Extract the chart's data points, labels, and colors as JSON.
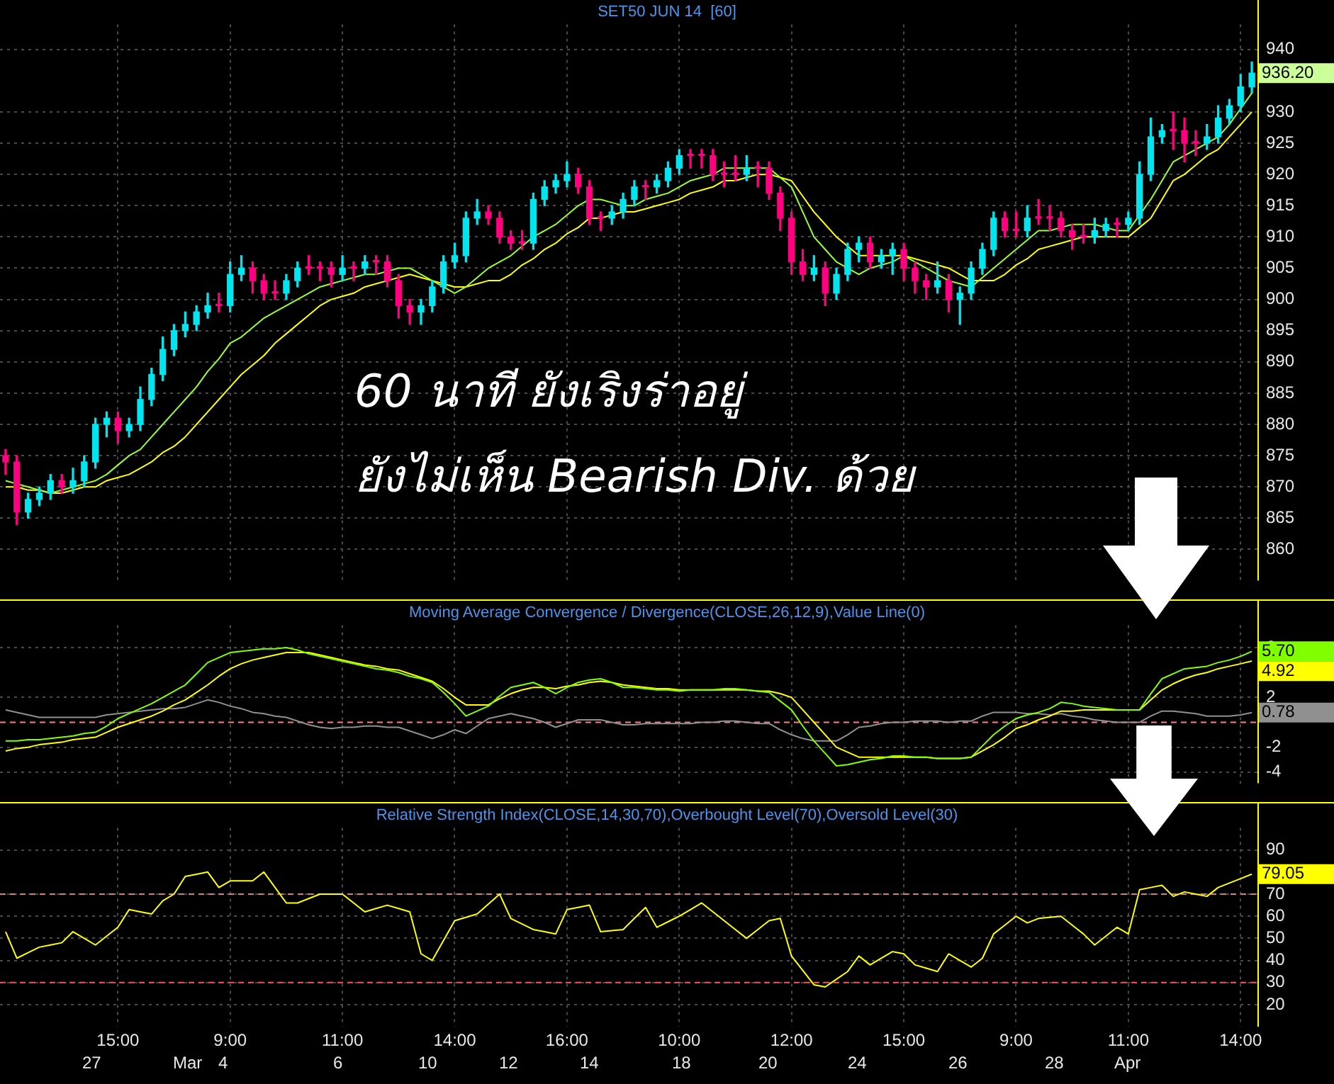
{
  "chart_data": [
    {
      "type": "candlestick",
      "title": "SET50 JUN 14  [60]",
      "categories": [
        null,
        null,
        null,
        null,
        null,
        null,
        null,
        null,
        null,
        null,
        null,
        null,
        null,
        null,
        null,
        null,
        null,
        null,
        null,
        null,
        null,
        null,
        null,
        null,
        null,
        null,
        null,
        null,
        null,
        null,
        null,
        null,
        null,
        null,
        null,
        null,
        null,
        null,
        null,
        null,
        null,
        null,
        null,
        null,
        null,
        null,
        null,
        null,
        null,
        null,
        null,
        null,
        null,
        null,
        null,
        null,
        null,
        null,
        null,
        null,
        null,
        null,
        null,
        null,
        null,
        null,
        null,
        null,
        null,
        null,
        null,
        null,
        null,
        null,
        null,
        null,
        null,
        null,
        null,
        null,
        null,
        null,
        null,
        null,
        null,
        null,
        null,
        null,
        null,
        null,
        null,
        null,
        null,
        null,
        null,
        null,
        null,
        null,
        null,
        null,
        null,
        null,
        null,
        null,
        null,
        null,
        null,
        null,
        null,
        null,
        null,
        null
      ],
      "ohlc": [
        [
          875,
          876,
          872,
          874
        ],
        [
          874,
          875,
          864,
          866
        ],
        [
          866,
          869,
          865,
          868
        ],
        [
          868,
          870,
          867,
          869
        ],
        [
          869,
          872,
          868,
          871
        ],
        [
          871,
          872,
          869,
          870
        ],
        [
          870,
          873,
          869,
          871
        ],
        [
          871,
          875,
          870,
          874
        ],
        [
          874,
          881,
          873,
          880
        ],
        [
          880,
          882,
          878,
          881
        ],
        [
          881,
          882,
          877,
          879
        ],
        [
          879,
          881,
          878,
          880
        ],
        [
          880,
          886,
          879,
          884
        ],
        [
          884,
          889,
          883,
          888
        ],
        [
          888,
          894,
          887,
          892
        ],
        [
          892,
          896,
          891,
          895
        ],
        [
          895,
          898,
          894,
          896
        ],
        [
          896,
          899,
          895,
          898
        ],
        [
          898,
          901,
          897,
          899
        ],
        [
          899,
          901,
          898,
          899
        ],
        [
          899,
          906,
          898,
          904
        ],
        [
          904,
          907,
          903,
          905
        ],
        [
          905,
          906,
          901,
          903
        ],
        [
          903,
          904,
          900,
          901
        ],
        [
          901,
          903,
          900,
          901
        ],
        [
          901,
          904,
          900,
          903
        ],
        [
          903,
          906,
          902,
          905
        ],
        [
          905,
          907,
          904,
          905
        ],
        [
          905,
          906,
          903,
          905
        ],
        [
          905,
          906,
          902,
          904
        ],
        [
          904,
          907,
          903,
          905
        ],
        [
          905,
          906,
          903,
          905
        ],
        [
          905,
          907,
          904,
          906
        ],
        [
          906,
          907,
          904,
          906
        ],
        [
          906,
          907,
          902,
          903
        ],
        [
          903,
          904,
          897,
          899
        ],
        [
          899,
          900,
          896,
          898
        ],
        [
          898,
          900,
          896,
          899
        ],
        [
          899,
          903,
          898,
          902
        ],
        [
          902,
          907,
          901,
          906
        ],
        [
          906,
          909,
          905,
          907
        ],
        [
          907,
          914,
          906,
          913
        ],
        [
          913,
          916,
          912,
          914
        ],
        [
          914,
          915,
          912,
          913
        ],
        [
          913,
          914,
          909,
          910
        ],
        [
          910,
          911,
          908,
          909
        ],
        [
          909,
          911,
          908,
          909
        ],
        [
          909,
          917,
          908,
          916
        ],
        [
          916,
          919,
          915,
          918
        ],
        [
          918,
          920,
          917,
          919
        ],
        [
          919,
          922,
          918,
          920
        ],
        [
          920,
          921,
          917,
          918
        ],
        [
          918,
          919,
          912,
          913
        ],
        [
          913,
          914,
          911,
          913
        ],
        [
          913,
          915,
          912,
          914
        ],
        [
          914,
          917,
          913,
          916
        ],
        [
          916,
          919,
          915,
          918
        ],
        [
          918,
          919,
          916,
          918
        ],
        [
          918,
          920,
          917,
          919
        ],
        [
          919,
          922,
          918,
          921
        ],
        [
          921,
          924,
          920,
          923
        ],
        [
          923,
          924,
          921,
          923
        ],
        [
          923,
          924,
          921,
          923
        ],
        [
          923,
          924,
          919,
          920
        ],
        [
          920,
          922,
          918,
          920
        ],
        [
          920,
          923,
          919,
          920
        ],
        [
          920,
          923,
          919,
          921
        ],
        [
          921,
          922,
          918,
          921
        ],
        [
          921,
          922,
          916,
          917
        ],
        [
          917,
          918,
          911,
          913
        ],
        [
          913,
          914,
          904,
          906
        ],
        [
          906,
          908,
          903,
          904
        ],
        [
          904,
          907,
          903,
          905
        ],
        [
          905,
          906,
          899,
          901
        ],
        [
          901,
          905,
          900,
          904
        ],
        [
          904,
          909,
          903,
          908
        ],
        [
          908,
          910,
          906,
          909
        ],
        [
          909,
          910,
          905,
          906
        ],
        [
          906,
          908,
          905,
          907
        ],
        [
          907,
          909,
          904,
          908
        ],
        [
          908,
          909,
          903,
          905
        ],
        [
          905,
          906,
          901,
          903
        ],
        [
          903,
          904,
          900,
          902
        ],
        [
          902,
          906,
          901,
          903
        ],
        [
          903,
          904,
          898,
          900
        ],
        [
          900,
          902,
          896,
          901
        ],
        [
          901,
          906,
          900,
          905
        ],
        [
          905,
          909,
          904,
          908
        ],
        [
          908,
          914,
          907,
          913
        ],
        [
          913,
          914,
          910,
          911
        ],
        [
          911,
          914,
          910,
          911
        ],
        [
          911,
          915,
          910,
          913
        ],
        [
          913,
          916,
          912,
          913
        ],
        [
          913,
          915,
          911,
          913
        ],
        [
          913,
          914,
          910,
          911
        ],
        [
          911,
          912,
          908,
          910
        ],
        [
          910,
          912,
          909,
          910
        ],
        [
          910,
          913,
          909,
          911
        ],
        [
          911,
          913,
          910,
          912
        ],
        [
          912,
          913,
          910,
          912
        ],
        [
          912,
          914,
          911,
          913
        ],
        [
          913,
          922,
          912,
          920
        ],
        [
          920,
          929,
          919,
          926
        ],
        [
          926,
          928,
          925,
          927
        ],
        [
          927,
          930,
          924,
          927
        ],
        [
          927,
          929,
          922,
          925
        ],
        [
          925,
          927,
          923,
          925
        ],
        [
          925,
          928,
          924,
          926
        ],
        [
          926,
          931,
          925,
          929
        ],
        [
          929,
          932,
          928,
          931
        ],
        [
          931,
          936,
          930,
          934
        ],
        [
          934,
          938,
          933,
          936.2
        ]
      ],
      "colors": [
        "#ff0080",
        "#ff0080",
        "#00e5ee",
        "#00e5ee",
        "#00e5ee",
        "#ff0080",
        "#00e5ee",
        "#00e5ee",
        "#00e5ee",
        "#00e5ee",
        "#ff0080",
        "#00e5ee",
        "#00e5ee",
        "#00e5ee",
        "#00e5ee",
        "#00e5ee",
        "#00e5ee",
        "#00e5ee",
        "#00e5ee",
        "#ff0080",
        "#00e5ee",
        "#00e5ee",
        "#ff0080",
        "#ff0080",
        "#ff0080",
        "#00e5ee",
        "#00e5ee",
        "#ff0080",
        "#ff0080",
        "#ff0080",
        "#00e5ee",
        "#ff0080",
        "#00e5ee",
        "#ff0080",
        "#ff0080",
        "#ff0080",
        "#ff0080",
        "#00e5ee",
        "#00e5ee",
        "#00e5ee",
        "#00e5ee",
        "#00e5ee",
        "#00e5ee",
        "#ff0080",
        "#ff0080",
        "#ff0080",
        "#ff0080",
        "#00e5ee",
        "#00e5ee",
        "#00e5ee",
        "#00e5ee",
        "#ff0080",
        "#ff0080",
        "#ff0080",
        "#00e5ee",
        "#00e5ee",
        "#00e5ee",
        "#ff0080",
        "#00e5ee",
        "#00e5ee",
        "#00e5ee",
        "#ff0080",
        "#ff0080",
        "#ff0080",
        "#ff0080",
        "#ff0080",
        "#00e5ee",
        "#ff0080",
        "#ff0080",
        "#ff0080",
        "#ff0080",
        "#ff0080",
        "#00e5ee",
        "#ff0080",
        "#00e5ee",
        "#00e5ee",
        "#00e5ee",
        "#ff0080",
        "#00e5ee",
        "#00e5ee",
        "#ff0080",
        "#ff0080",
        "#ff0080",
        "#00e5ee",
        "#ff0080",
        "#00e5ee",
        "#00e5ee",
        "#00e5ee",
        "#00e5ee",
        "#ff0080",
        "#ff0080",
        "#00e5ee",
        "#ff0080",
        "#ff0080",
        "#ff0080",
        "#ff0080",
        "#ff0080",
        "#00e5ee",
        "#00e5ee",
        "#ff0080",
        "#00e5ee",
        "#00e5ee",
        "#00e5ee",
        "#00e5ee",
        "#ff0080",
        "#ff0080",
        "#ff0080",
        "#00e5ee",
        "#00e5ee",
        "#00e5ee",
        "#00e5ee",
        "#00e5ee"
      ],
      "series": [
        {
          "type": "line",
          "color": "#99ff33",
          "values": [
            871,
            870.5,
            870,
            869.5,
            869,
            869.5,
            870,
            870.5,
            871,
            872,
            873.5,
            875,
            876,
            878,
            880,
            882,
            884,
            886,
            888.5,
            890.5,
            893,
            894,
            895.5,
            897,
            898,
            899,
            900,
            901,
            902,
            902.5,
            903,
            903.5,
            904,
            904,
            904.5,
            905,
            905,
            904,
            903,
            902,
            901,
            902,
            903.5,
            905,
            906,
            907,
            908.5,
            910,
            911,
            912,
            913.5,
            915,
            916,
            916,
            915.5,
            915,
            915,
            916,
            916.5,
            917,
            918,
            919,
            919.5,
            920,
            921,
            921,
            921,
            921,
            921,
            919.5,
            918,
            914,
            910,
            908,
            906,
            905,
            904,
            905,
            905.5,
            906,
            907,
            906,
            905,
            904,
            903,
            902.5,
            902,
            903.5,
            905,
            906.5,
            908,
            909.5,
            911,
            911,
            911.5,
            912,
            912,
            912,
            911.5,
            911,
            911,
            913.5,
            916,
            919,
            922,
            923,
            924,
            925,
            926,
            928,
            930.5,
            933
          ]
        },
        {
          "type": "line",
          "color": "#ffff00",
          "values": [
            870,
            870,
            869.5,
            869.5,
            869,
            869,
            869.5,
            870,
            870,
            871,
            871.5,
            872,
            873,
            874,
            875.5,
            876.5,
            878,
            880,
            882,
            884,
            886,
            888,
            889.5,
            891,
            893,
            894.5,
            896,
            897.5,
            899,
            900,
            900.5,
            901,
            902,
            902.5,
            903,
            903.5,
            904,
            903.5,
            903,
            902.5,
            902,
            902,
            902.5,
            903,
            903,
            904,
            905.5,
            906.5,
            908,
            909,
            910.5,
            911.5,
            913,
            913,
            913.5,
            914,
            914,
            914.5,
            915,
            915.5,
            916,
            917,
            917.5,
            918,
            919,
            919,
            919.5,
            920,
            920,
            919.5,
            919,
            916.5,
            914,
            912,
            910,
            908.5,
            907,
            907,
            907,
            907,
            907,
            906.5,
            906,
            905.5,
            905,
            904,
            903,
            903,
            903,
            904,
            905.5,
            906.5,
            908,
            908.5,
            909,
            909.5,
            910,
            910,
            910,
            910,
            910,
            911.5,
            913,
            916,
            919,
            920,
            921.5,
            923,
            924,
            926,
            928,
            930
          ]
        }
      ],
      "ylim": [
        855,
        944
      ],
      "yticks": [
        860,
        865,
        870,
        875,
        880,
        885,
        890,
        895,
        900,
        905,
        910,
        915,
        920,
        925,
        930,
        940
      ],
      "grid": true,
      "tick_labels": "y",
      "annotations": [
        "60 นาที ยังเริงร่าอยู่",
        "ยังไม่เห็น Bearish Div. ด้วย",
        "936.20"
      ]
    },
    {
      "type": "line",
      "title": "Moving Average Convergence / Divergence(CLOSE,26,12,9),Value Line(0)",
      "categories": [
        null,
        null,
        null,
        null,
        null,
        null,
        null,
        null,
        null,
        null,
        null,
        null,
        null,
        null,
        null,
        null,
        null,
        null,
        null,
        null,
        null,
        null,
        null,
        null,
        null,
        null,
        null,
        null,
        null,
        null,
        null,
        null,
        null,
        null,
        null,
        null,
        null,
        null,
        null,
        null,
        null,
        null,
        null,
        null,
        null,
        null,
        null,
        null,
        null,
        null,
        null,
        null,
        null,
        null,
        null,
        null,
        null,
        null,
        null,
        null,
        null,
        null,
        null,
        null,
        null,
        null,
        null,
        null,
        null,
        null,
        null,
        null,
        null,
        null,
        null,
        null,
        null,
        null,
        null,
        null,
        null,
        null,
        null,
        null,
        null,
        null,
        null,
        null,
        null,
        null,
        null,
        null,
        null,
        null,
        null,
        null,
        null,
        null,
        null,
        null,
        null,
        null,
        null,
        null,
        null,
        null,
        null,
        null,
        null,
        null,
        null,
        null
      ],
      "series": [
        {
          "color": "#80ff00",
          "values": [
            -1.5,
            -1.5,
            -1.4,
            -1.4,
            -1.3,
            -1.2,
            -1.1,
            -0.9,
            -0.8,
            -0.3,
            0.3,
            0.7,
            1.1,
            1.5,
            2.0,
            2.5,
            3.0,
            3.9,
            4.8,
            5.2,
            5.6,
            5.7,
            5.8,
            5.9,
            5.9,
            6.0,
            5.8,
            5.5,
            5.3,
            5.1,
            4.9,
            4.7,
            4.5,
            4.3,
            4.2,
            4.0,
            3.7,
            3.5,
            3.2,
            2.4,
            1.5,
            0.5,
            0.9,
            1.3,
            2.1,
            2.8,
            3.0,
            3.2,
            2.8,
            2.3,
            2.8,
            3.2,
            3.4,
            3.5,
            3.2,
            2.8,
            2.8,
            2.7,
            2.6,
            2.6,
            2.5,
            2.6,
            2.6,
            2.6,
            2.7,
            2.7,
            2.6,
            2.5,
            2.4,
            1.7,
            1.0,
            -0.3,
            -1.5,
            -2.5,
            -3.5,
            -3.4,
            -3.2,
            -3.0,
            -2.9,
            -2.7,
            -2.7,
            -2.8,
            -2.8,
            -2.9,
            -2.9,
            -2.9,
            -2.8,
            -1.9,
            -1.0,
            -0.3,
            0.3,
            0.6,
            0.8,
            1.1,
            1.6,
            1.5,
            1.3,
            1.2,
            1.1,
            1.0,
            1.0,
            1.0,
            2.3,
            3.5,
            3.9,
            4.3,
            4.4,
            4.5,
            4.8,
            5.0,
            5.3,
            5.7
          ],
          "value_labels": [
            null,
            null,
            null,
            null,
            null,
            null,
            null,
            null,
            null,
            null,
            null,
            null,
            null,
            null,
            null,
            null,
            null,
            null,
            null,
            null,
            null,
            null,
            null,
            null,
            null,
            null,
            null,
            null,
            null,
            null,
            null,
            null,
            null,
            null,
            null,
            null,
            null,
            null,
            null,
            null,
            null,
            null,
            null,
            null,
            null,
            null,
            null,
            null,
            null,
            null,
            null,
            null,
            null,
            null,
            null,
            null,
            null,
            null,
            null,
            null,
            null,
            null,
            null,
            null,
            null,
            null,
            null,
            null,
            null,
            null,
            null,
            null,
            null,
            null,
            null,
            null,
            null,
            null,
            null,
            null,
            null,
            null,
            null,
            null,
            null,
            null,
            null,
            null,
            null,
            null,
            null,
            null,
            null,
            null,
            null,
            null,
            null,
            null,
            null,
            null,
            null,
            null,
            null,
            null,
            null,
            null,
            null,
            null,
            null,
            null,
            null,
            "5.70"
          ]
        },
        {
          "color": "#ffff00",
          "values": [
            -2.3,
            -2.1,
            -2.0,
            -1.8,
            -1.7,
            -1.6,
            -1.4,
            -1.3,
            -1.2,
            -0.8,
            -0.4,
            -0.1,
            0.2,
            0.5,
            0.9,
            1.4,
            1.8,
            2.4,
            3.0,
            3.7,
            4.3,
            4.7,
            5.0,
            5.2,
            5.4,
            5.6,
            5.6,
            5.6,
            5.4,
            5.2,
            5.0,
            4.8,
            4.6,
            4.5,
            4.3,
            4.2,
            3.9,
            3.6,
            3.3,
            2.7,
            2.0,
            1.4,
            1.4,
            1.4,
            1.9,
            2.3,
            2.6,
            2.8,
            2.8,
            2.7,
            2.9,
            3.0,
            3.2,
            3.3,
            3.2,
            3.0,
            2.9,
            2.8,
            2.7,
            2.7,
            2.6,
            2.6,
            2.6,
            2.6,
            2.6,
            2.6,
            2.6,
            2.5,
            2.5,
            2.3,
            2.0,
            1.0,
            0.0,
            -1.0,
            -2.0,
            -2.4,
            -2.8,
            -2.8,
            -2.8,
            -2.8,
            -2.8,
            -2.8,
            -2.8,
            -2.9,
            -2.9,
            -2.9,
            -2.8,
            -2.3,
            -1.8,
            -1.2,
            -0.5,
            -0.2,
            0.2,
            0.5,
            0.9,
            0.9,
            1.0,
            1.0,
            1.0,
            1.0,
            1.0,
            1.0,
            1.8,
            2.6,
            3.1,
            3.5,
            3.8,
            4.0,
            4.3,
            4.5,
            4.7,
            4.92
          ],
          "value_labels": [
            null,
            null,
            null,
            null,
            null,
            null,
            null,
            null,
            null,
            null,
            null,
            null,
            null,
            null,
            null,
            null,
            null,
            null,
            null,
            null,
            null,
            null,
            null,
            null,
            null,
            null,
            null,
            null,
            null,
            null,
            null,
            null,
            null,
            null,
            null,
            null,
            null,
            null,
            null,
            null,
            null,
            null,
            null,
            null,
            null,
            null,
            null,
            null,
            null,
            null,
            null,
            null,
            null,
            null,
            null,
            null,
            null,
            null,
            null,
            null,
            null,
            null,
            null,
            null,
            null,
            null,
            null,
            null,
            null,
            null,
            null,
            null,
            null,
            null,
            null,
            null,
            null,
            null,
            null,
            null,
            null,
            null,
            null,
            null,
            null,
            null,
            null,
            null,
            null,
            null,
            null,
            null,
            null,
            null,
            null,
            null,
            null,
            null,
            null,
            null,
            null,
            null,
            null,
            null,
            null,
            null,
            null,
            null,
            null,
            null,
            null,
            "4.92"
          ]
        },
        {
          "color": "#909090",
          "values": [
            1.0,
            0.8,
            0.6,
            0.4,
            0.4,
            0.4,
            0.4,
            0.4,
            0.4,
            0.6,
            0.7,
            0.8,
            0.9,
            1.0,
            1.1,
            1.1,
            1.2,
            1.5,
            1.8,
            1.6,
            1.3,
            1.1,
            0.8,
            0.7,
            0.5,
            0.4,
            0.1,
            -0.2,
            -0.4,
            -0.5,
            -0.4,
            -0.4,
            -0.3,
            -0.3,
            -0.4,
            -0.4,
            -0.7,
            -1.0,
            -1.3,
            -1.0,
            -0.6,
            -0.9,
            -0.3,
            0.3,
            0.5,
            0.7,
            0.5,
            0.3,
            0.0,
            -0.4,
            -0.1,
            0.2,
            0.2,
            0.2,
            0.0,
            -0.2,
            -0.2,
            -0.1,
            -0.1,
            -0.1,
            -0.1,
            -0.1,
            0.0,
            0.0,
            0.1,
            0.1,
            0.0,
            -0.1,
            -0.1,
            -0.6,
            -1.0,
            -1.3,
            -1.5,
            -1.5,
            -1.5,
            -1.0,
            -0.4,
            -0.3,
            -0.1,
            0.0,
            0.0,
            0.1,
            0.1,
            0.1,
            0.0,
            0.1,
            0.1,
            0.5,
            0.8,
            0.8,
            0.8,
            0.7,
            0.7,
            0.6,
            0.7,
            0.5,
            0.4,
            0.2,
            0.1,
            0.0,
            0.0,
            0.0,
            0.5,
            0.9,
            0.9,
            0.8,
            0.7,
            0.5,
            0.5,
            0.5,
            0.6,
            0.78
          ],
          "value_labels": [
            null,
            null,
            null,
            null,
            null,
            null,
            null,
            null,
            null,
            null,
            null,
            null,
            null,
            null,
            null,
            null,
            null,
            null,
            null,
            null,
            null,
            null,
            null,
            null,
            null,
            null,
            null,
            null,
            null,
            null,
            null,
            null,
            null,
            null,
            null,
            null,
            null,
            null,
            null,
            null,
            null,
            null,
            null,
            null,
            null,
            null,
            null,
            null,
            null,
            null,
            null,
            null,
            null,
            null,
            null,
            null,
            null,
            null,
            null,
            null,
            null,
            null,
            null,
            null,
            null,
            null,
            null,
            null,
            null,
            null,
            null,
            null,
            null,
            null,
            null,
            null,
            null,
            null,
            null,
            null,
            null,
            null,
            null,
            null,
            null,
            null,
            null,
            null,
            null,
            null,
            null,
            null,
            null,
            null,
            null,
            null,
            null,
            null,
            null,
            null,
            null,
            null,
            null,
            null,
            null,
            null,
            null,
            null,
            null,
            null,
            null,
            "0.78"
          ]
        }
      ],
      "ylim": [
        -4.9,
        7.8
      ],
      "yticks": [
        -4,
        -2,
        2,
        6
      ],
      "grid": true,
      "tick_labels": "y",
      "ref_lines": [
        {
          "axis": "y",
          "value": 0,
          "color": "#ff8080",
          "line_style": "dashed"
        }
      ]
    },
    {
      "type": "line",
      "title": "Relative Strength Index(CLOSE,14,30,70),Overbought Level(70),Oversold Level(30)",
      "categories": [
        null,
        null,
        null,
        null,
        null,
        null,
        null,
        null,
        null,
        null,
        "15:00",
        null,
        null,
        null,
        null,
        null,
        null,
        null,
        null,
        null,
        "9:00",
        null,
        null,
        null,
        null,
        null,
        null,
        null,
        null,
        null,
        "11:00",
        null,
        null,
        null,
        null,
        null,
        null,
        null,
        null,
        null,
        "14:00",
        null,
        null,
        null,
        null,
        null,
        null,
        null,
        null,
        null,
        "16:00",
        null,
        null,
        null,
        null,
        null,
        null,
        null,
        null,
        null,
        "10:00",
        null,
        null,
        null,
        null,
        null,
        null,
        null,
        null,
        null,
        "12:00",
        null,
        null,
        null,
        null,
        null,
        null,
        null,
        null,
        null,
        "15:00",
        null,
        null,
        null,
        null,
        null,
        null,
        null,
        null,
        null,
        "9:00",
        null,
        null,
        null,
        null,
        null,
        null,
        null,
        null,
        null,
        "11:00",
        null,
        null,
        null,
        null,
        null,
        null,
        null,
        null,
        null,
        "14:00",
        null
      ],
      "series": [
        {
          "color": "#ffff00",
          "values": [
            53,
            41,
            43.5,
            46,
            47,
            48,
            53,
            50,
            47,
            51,
            55,
            63,
            62,
            61,
            67,
            70,
            78,
            79,
            80,
            73,
            76,
            76,
            76,
            80,
            73,
            66,
            66,
            68,
            70,
            70,
            70,
            66,
            62,
            63.5,
            65,
            63.5,
            62,
            43,
            40,
            49,
            58,
            59.5,
            61,
            65.5,
            70,
            59,
            56.5,
            54,
            53,
            52,
            63,
            64,
            65,
            53,
            53.5,
            54,
            59,
            64,
            55,
            57.5,
            60,
            63,
            66,
            62,
            58,
            54,
            50,
            54,
            58,
            59,
            42,
            35.5,
            29,
            28,
            31.5,
            35,
            42,
            38,
            41,
            44,
            43,
            38,
            36.5,
            35,
            43,
            40,
            37,
            41,
            52,
            56,
            60,
            57,
            59,
            59.5,
            60,
            56,
            52,
            47,
            51,
            55,
            52,
            72,
            73,
            74,
            69,
            71,
            70,
            69,
            73,
            75,
            77,
            79.05
          ],
          "value_labels": [
            null,
            null,
            null,
            null,
            null,
            null,
            null,
            null,
            null,
            null,
            null,
            null,
            null,
            null,
            null,
            null,
            null,
            null,
            null,
            null,
            null,
            null,
            null,
            null,
            null,
            null,
            null,
            null,
            null,
            null,
            null,
            null,
            null,
            null,
            null,
            null,
            null,
            null,
            null,
            null,
            null,
            null,
            null,
            null,
            null,
            null,
            null,
            null,
            null,
            null,
            null,
            null,
            null,
            null,
            null,
            null,
            null,
            null,
            null,
            null,
            null,
            null,
            null,
            null,
            null,
            null,
            null,
            null,
            null,
            null,
            null,
            null,
            null,
            null,
            null,
            null,
            null,
            null,
            null,
            null,
            null,
            null,
            null,
            null,
            null,
            null,
            null,
            null,
            null,
            null,
            null,
            null,
            null,
            null,
            null,
            null,
            null,
            null,
            null,
            null,
            null,
            null,
            null,
            null,
            null,
            null,
            null,
            null,
            null,
            null,
            null,
            "79.05"
          ]
        }
      ],
      "ylim": [
        10,
        100
      ],
      "yticks": [
        20,
        30,
        40,
        50,
        60,
        70,
        90
      ],
      "grid": true,
      "ref_lines": [
        {
          "axis": "y",
          "value": 70,
          "color": "#d08080",
          "line_style": "dashed"
        },
        {
          "axis": "y",
          "value": 30,
          "color": "#ff5050",
          "line_style": "dashed"
        }
      ],
      "annotations": [
        "27",
        "Mar",
        "4",
        "6",
        "10",
        "12",
        "14",
        "18",
        "20",
        "24",
        "26",
        "28",
        "Apr"
      ]
    }
  ]
}
